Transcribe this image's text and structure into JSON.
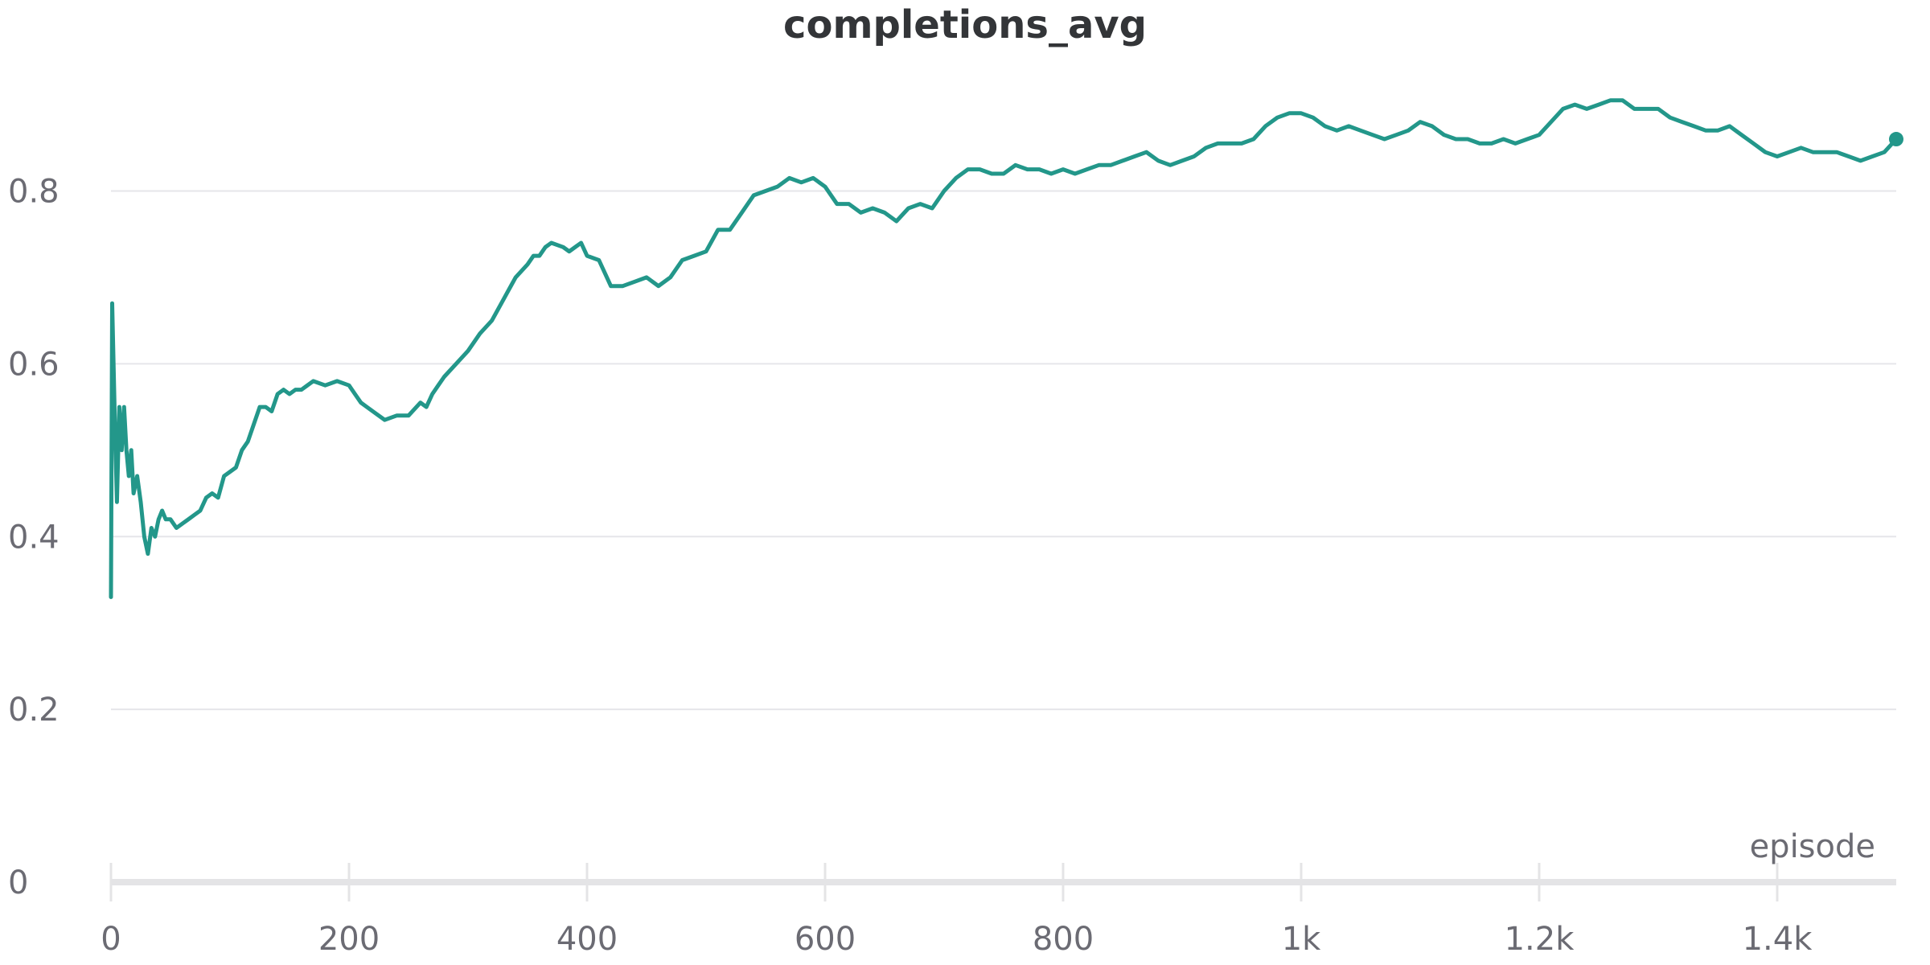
{
  "chart_data": {
    "type": "line",
    "title": "completions_avg",
    "xlabel": "episode",
    "ylabel": "",
    "xlim": [
      0,
      1500
    ],
    "ylim": [
      0,
      0.9
    ],
    "grid": true,
    "legend": "none",
    "x_ticks": [
      {
        "value": 0,
        "label": "0"
      },
      {
        "value": 200,
        "label": "200"
      },
      {
        "value": 400,
        "label": "400"
      },
      {
        "value": 600,
        "label": "600"
      },
      {
        "value": 800,
        "label": "800"
      },
      {
        "value": 1000,
        "label": "1k"
      },
      {
        "value": 1200,
        "label": "1.2k"
      },
      {
        "value": 1400,
        "label": "1.4k"
      }
    ],
    "y_ticks": [
      {
        "value": 0,
        "label": "0"
      },
      {
        "value": 0.2,
        "label": "0.2"
      },
      {
        "value": 0.4,
        "label": "0.4"
      },
      {
        "value": 0.6,
        "label": "0.6"
      },
      {
        "value": 0.8,
        "label": "0.8"
      }
    ],
    "series": [
      {
        "color": "#23978a",
        "x": [
          0,
          1,
          3,
          5,
          7,
          9,
          11,
          13,
          15,
          17,
          19,
          22,
          25,
          28,
          31,
          34,
          37,
          40,
          43,
          46,
          50,
          55,
          60,
          65,
          70,
          75,
          80,
          85,
          90,
          95,
          100,
          105,
          110,
          115,
          120,
          125,
          130,
          135,
          140,
          145,
          150,
          155,
          160,
          170,
          180,
          190,
          200,
          205,
          210,
          215,
          220,
          230,
          240,
          250,
          260,
          265,
          270,
          275,
          280,
          290,
          300,
          310,
          320,
          330,
          340,
          350,
          355,
          360,
          365,
          370,
          380,
          385,
          390,
          395,
          400,
          410,
          420,
          430,
          440,
          450,
          460,
          470,
          480,
          490,
          500,
          510,
          520,
          530,
          540,
          550,
          560,
          570,
          580,
          590,
          600,
          610,
          620,
          630,
          640,
          650,
          660,
          670,
          680,
          690,
          700,
          710,
          720,
          730,
          740,
          750,
          760,
          770,
          780,
          790,
          800,
          810,
          820,
          830,
          840,
          850,
          860,
          870,
          880,
          890,
          900,
          910,
          920,
          930,
          940,
          950,
          960,
          970,
          980,
          990,
          1000,
          1010,
          1020,
          1030,
          1040,
          1050,
          1060,
          1070,
          1080,
          1090,
          1100,
          1110,
          1120,
          1130,
          1140,
          1150,
          1160,
          1170,
          1180,
          1190,
          1200,
          1210,
          1220,
          1230,
          1240,
          1250,
          1260,
          1270,
          1280,
          1290,
          1300,
          1310,
          1320,
          1330,
          1340,
          1350,
          1360,
          1370,
          1380,
          1390,
          1400,
          1410,
          1420,
          1430,
          1440,
          1450,
          1460,
          1470,
          1480,
          1490,
          1500
        ],
        "values": [
          0.33,
          0.67,
          0.55,
          0.44,
          0.55,
          0.5,
          0.55,
          0.5,
          0.47,
          0.5,
          0.45,
          0.47,
          0.44,
          0.4,
          0.38,
          0.41,
          0.4,
          0.42,
          0.43,
          0.42,
          0.42,
          0.41,
          0.415,
          0.42,
          0.425,
          0.43,
          0.445,
          0.45,
          0.445,
          0.47,
          0.475,
          0.48,
          0.5,
          0.51,
          0.53,
          0.55,
          0.55,
          0.545,
          0.565,
          0.57,
          0.565,
          0.57,
          0.57,
          0.58,
          0.575,
          0.58,
          0.575,
          0.565,
          0.555,
          0.55,
          0.545,
          0.535,
          0.54,
          0.54,
          0.555,
          0.55,
          0.565,
          0.575,
          0.585,
          0.6,
          0.615,
          0.635,
          0.65,
          0.675,
          0.7,
          0.715,
          0.725,
          0.725,
          0.735,
          0.74,
          0.735,
          0.73,
          0.735,
          0.74,
          0.725,
          0.72,
          0.69,
          0.69,
          0.695,
          0.7,
          0.69,
          0.7,
          0.72,
          0.725,
          0.73,
          0.755,
          0.755,
          0.775,
          0.795,
          0.8,
          0.805,
          0.815,
          0.81,
          0.815,
          0.805,
          0.785,
          0.785,
          0.775,
          0.78,
          0.775,
          0.765,
          0.78,
          0.785,
          0.78,
          0.8,
          0.815,
          0.825,
          0.825,
          0.82,
          0.82,
          0.83,
          0.825,
          0.825,
          0.82,
          0.825,
          0.82,
          0.825,
          0.83,
          0.83,
          0.835,
          0.84,
          0.845,
          0.835,
          0.83,
          0.835,
          0.84,
          0.85,
          0.855,
          0.855,
          0.855,
          0.86,
          0.875,
          0.885,
          0.89,
          0.89,
          0.885,
          0.875,
          0.87,
          0.875,
          0.87,
          0.865,
          0.86,
          0.865,
          0.87,
          0.88,
          0.875,
          0.865,
          0.86,
          0.86,
          0.855,
          0.855,
          0.86,
          0.855,
          0.86,
          0.865,
          0.88,
          0.895,
          0.9,
          0.895,
          0.9,
          0.905,
          0.905,
          0.895,
          0.895,
          0.895,
          0.885,
          0.88,
          0.875,
          0.87,
          0.87,
          0.875,
          0.865,
          0.855,
          0.845,
          0.84,
          0.845,
          0.85,
          0.845,
          0.845,
          0.845,
          0.84,
          0.835,
          0.84,
          0.845,
          0.86
        ]
      }
    ]
  }
}
